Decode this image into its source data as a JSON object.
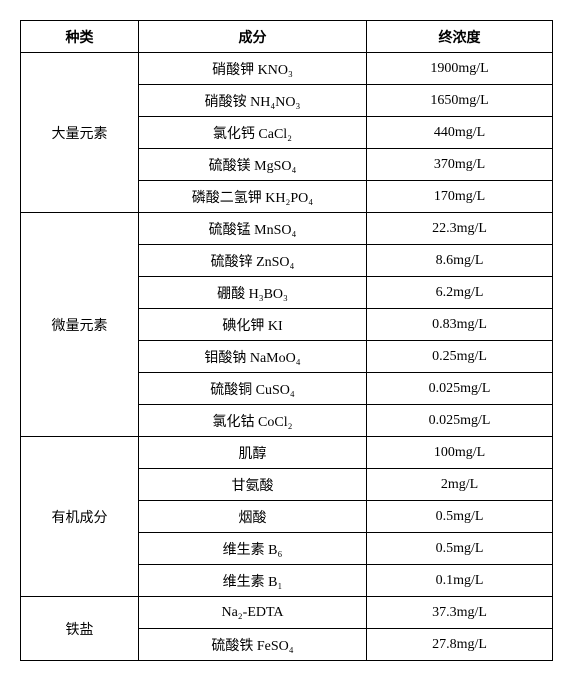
{
  "headers": {
    "col1": "种类",
    "col2": "成分",
    "col3": "终浓度"
  },
  "groups": [
    {
      "name": "大量元素",
      "rows": [
        {
          "component": "硝酸钾 KNO₃",
          "conc": "1900mg/L"
        },
        {
          "component": "硝酸铵 NH₄NO₃",
          "conc": "1650mg/L"
        },
        {
          "component": "氯化钙 CaCl₂",
          "conc": "440mg/L"
        },
        {
          "component": "硫酸镁 MgSO₄",
          "conc": "370mg/L"
        },
        {
          "component": "磷酸二氢钾 KH₂PO₄",
          "conc": "170mg/L"
        }
      ]
    },
    {
      "name": "微量元素",
      "rows": [
        {
          "component": "硫酸锰 MnSO₄",
          "conc": "22.3mg/L"
        },
        {
          "component": "硫酸锌 ZnSO₄",
          "conc": "8.6mg/L"
        },
        {
          "component": "硼酸 H₃BO₃",
          "conc": "6.2mg/L"
        },
        {
          "component": "碘化钾 KI",
          "conc": "0.83mg/L"
        },
        {
          "component": "钼酸钠 NaMoO₄",
          "conc": "0.25mg/L"
        },
        {
          "component": "硫酸铜 CuSO₄",
          "conc": "0.025mg/L"
        },
        {
          "component": "氯化钴 CoCl₂",
          "conc": "0.025mg/L"
        }
      ]
    },
    {
      "name": "有机成分",
      "rows": [
        {
          "component": "肌醇",
          "conc": "100mg/L"
        },
        {
          "component": "甘氨酸",
          "conc": "2mg/L"
        },
        {
          "component": "烟酸",
          "conc": "0.5mg/L"
        },
        {
          "component": "维生素 B₆",
          "conc": "0.5mg/L"
        },
        {
          "component": "维生素 B₁",
          "conc": "0.1mg/L"
        }
      ]
    },
    {
      "name": "铁盐",
      "rows": [
        {
          "component": "Na₂-EDTA",
          "conc": "37.3mg/L"
        },
        {
          "component": "硫酸铁 FeSO₄",
          "conc": "27.8mg/L"
        }
      ]
    }
  ]
}
